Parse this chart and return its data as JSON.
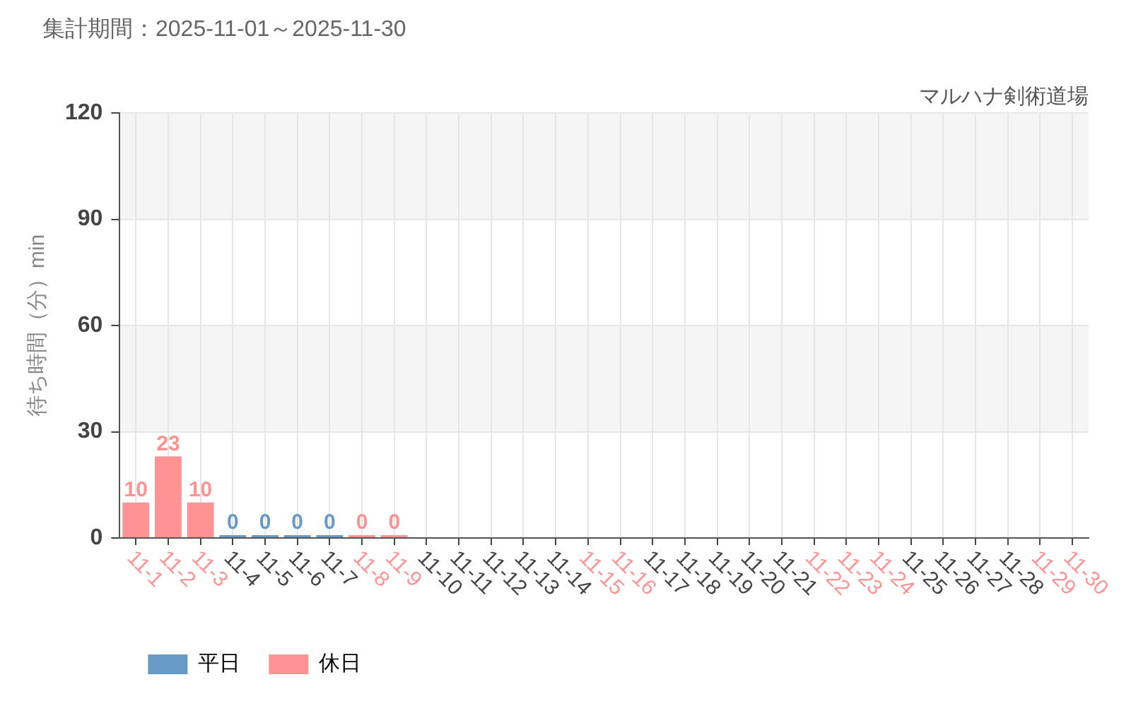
{
  "chart_data": {
    "type": "bar",
    "title": "集計期間：2025-11-01～2025-11-30",
    "subtitle": "マルハナ剣術道場",
    "ylabel": "待ち時間（分）min",
    "categories": [
      "11-1",
      "11-2",
      "11-3",
      "11-4",
      "11-5",
      "11-6",
      "11-7",
      "11-8",
      "11-9",
      "11-10",
      "11-11",
      "11-12",
      "11-13",
      "11-14",
      "11-15",
      "11-16",
      "11-17",
      "11-18",
      "11-19",
      "11-20",
      "11-21",
      "11-22",
      "11-23",
      "11-24",
      "11-25",
      "11-26",
      "11-27",
      "11-28",
      "11-29",
      "11-30"
    ],
    "colors": [
      "#ff9393",
      "#ff9393",
      "#ff9393",
      "#689ac6",
      "#689ac6",
      "#689ac6",
      "#689ac6",
      "#ff9393",
      "#ff9393",
      "#689ac6",
      "#689ac6",
      "#689ac6",
      "#689ac6",
      "#689ac6",
      "#ff9393",
      "#ff9393",
      "#689ac6",
      "#689ac6",
      "#689ac6",
      "#689ac6",
      "#689ac6",
      "#ff9393",
      "#ff9393",
      "#ff9393",
      "#689ac6",
      "#689ac6",
      "#689ac6",
      "#689ac6",
      "#ff9393",
      "#ff9393"
    ],
    "series": [
      {
        "name": "平日",
        "color": "#689ac6",
        "values": [
          null,
          null,
          null,
          0,
          0,
          0,
          0,
          null,
          null,
          null,
          null,
          null,
          null,
          null,
          null,
          null,
          null,
          null,
          null,
          null,
          null,
          null,
          null,
          null,
          null,
          null,
          null,
          null,
          null,
          null
        ]
      },
      {
        "name": "休日",
        "color": "#ff9393",
        "values": [
          10,
          23,
          10,
          null,
          null,
          null,
          null,
          0,
          0,
          null,
          null,
          null,
          null,
          null,
          null,
          null,
          null,
          null,
          null,
          null,
          null,
          null,
          null,
          null,
          null,
          null,
          null,
          null,
          null,
          null
        ]
      }
    ],
    "stacked": true,
    "ylim": [
      0,
      120
    ],
    "yticks": [
      0,
      30,
      60,
      90,
      120
    ],
    "grid": true,
    "legend": "bottom left",
    "data_labels": true,
    "bands": [
      {
        "axis": "y",
        "from": 30,
        "to": 60,
        "color": "#f5f5f5"
      },
      {
        "axis": "y",
        "from": 90,
        "to": 120,
        "color": "#f5f5f5"
      }
    ]
  }
}
